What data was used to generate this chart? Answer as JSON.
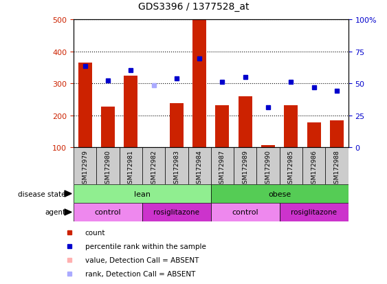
{
  "title": "GDS3396 / 1377528_at",
  "samples": [
    "GSM172979",
    "GSM172980",
    "GSM172981",
    "GSM172982",
    "GSM172983",
    "GSM172984",
    "GSM172987",
    "GSM172989",
    "GSM172990",
    "GSM172985",
    "GSM172986",
    "GSM172988"
  ],
  "bar_values": [
    365,
    227,
    323,
    100,
    238,
    497,
    232,
    260,
    108,
    231,
    177,
    185
  ],
  "bar_absent": [
    false,
    false,
    false,
    true,
    false,
    false,
    false,
    false,
    false,
    false,
    false,
    false
  ],
  "percentile_values": [
    355,
    309,
    342,
    294,
    315,
    378,
    304,
    320,
    226,
    305,
    287,
    277
  ],
  "percentile_absent": [
    false,
    false,
    false,
    true,
    false,
    false,
    false,
    false,
    false,
    false,
    false,
    false
  ],
  "bar_color": "#cc2200",
  "bar_absent_color": "#ffb0b0",
  "percentile_color": "#0000cc",
  "percentile_absent_color": "#aaaaff",
  "ylim_left": [
    100,
    500
  ],
  "ylim_right": [
    0,
    100
  ],
  "yticks_left": [
    100,
    200,
    300,
    400,
    500
  ],
  "yticks_right": [
    0,
    25,
    50,
    75,
    100
  ],
  "ytick_right_labels": [
    "0",
    "25",
    "50",
    "75",
    "100%"
  ],
  "disease_color_lean": "#90ee90",
  "disease_color_obese": "#55cc55",
  "agent_color_control": "#ee88ee",
  "agent_color_rosiglitazone": "#cc33cc",
  "ylabel_color_left": "#cc2200",
  "ylabel_color_right": "#0000cc",
  "tick_label_bg": "#cccccc",
  "background_color": "#ffffff"
}
